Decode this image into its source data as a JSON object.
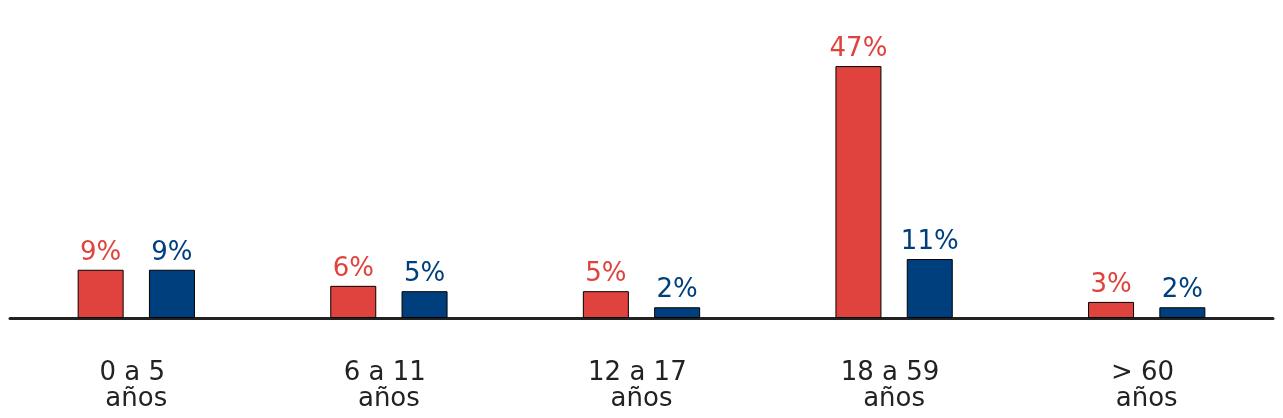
{
  "chart_data": {
    "type": "bar",
    "categories": [
      "0 a 5 años",
      "6 a 11 años",
      "12 a 17 años",
      "18 a 59 años",
      "> 60 años"
    ],
    "series": [
      {
        "color": "#e0433e",
        "values": [
          9,
          6,
          5,
          47,
          3
        ],
        "value_labels": [
          "9%",
          "6%",
          "5%",
          "47%",
          "3%"
        ]
      },
      {
        "color": "#003f7d",
        "values": [
          9,
          5,
          2,
          11,
          2
        ],
        "value_labels": [
          "9%",
          "5%",
          "2%",
          "11%",
          "2%"
        ]
      }
    ],
    "grid": false
  }
}
